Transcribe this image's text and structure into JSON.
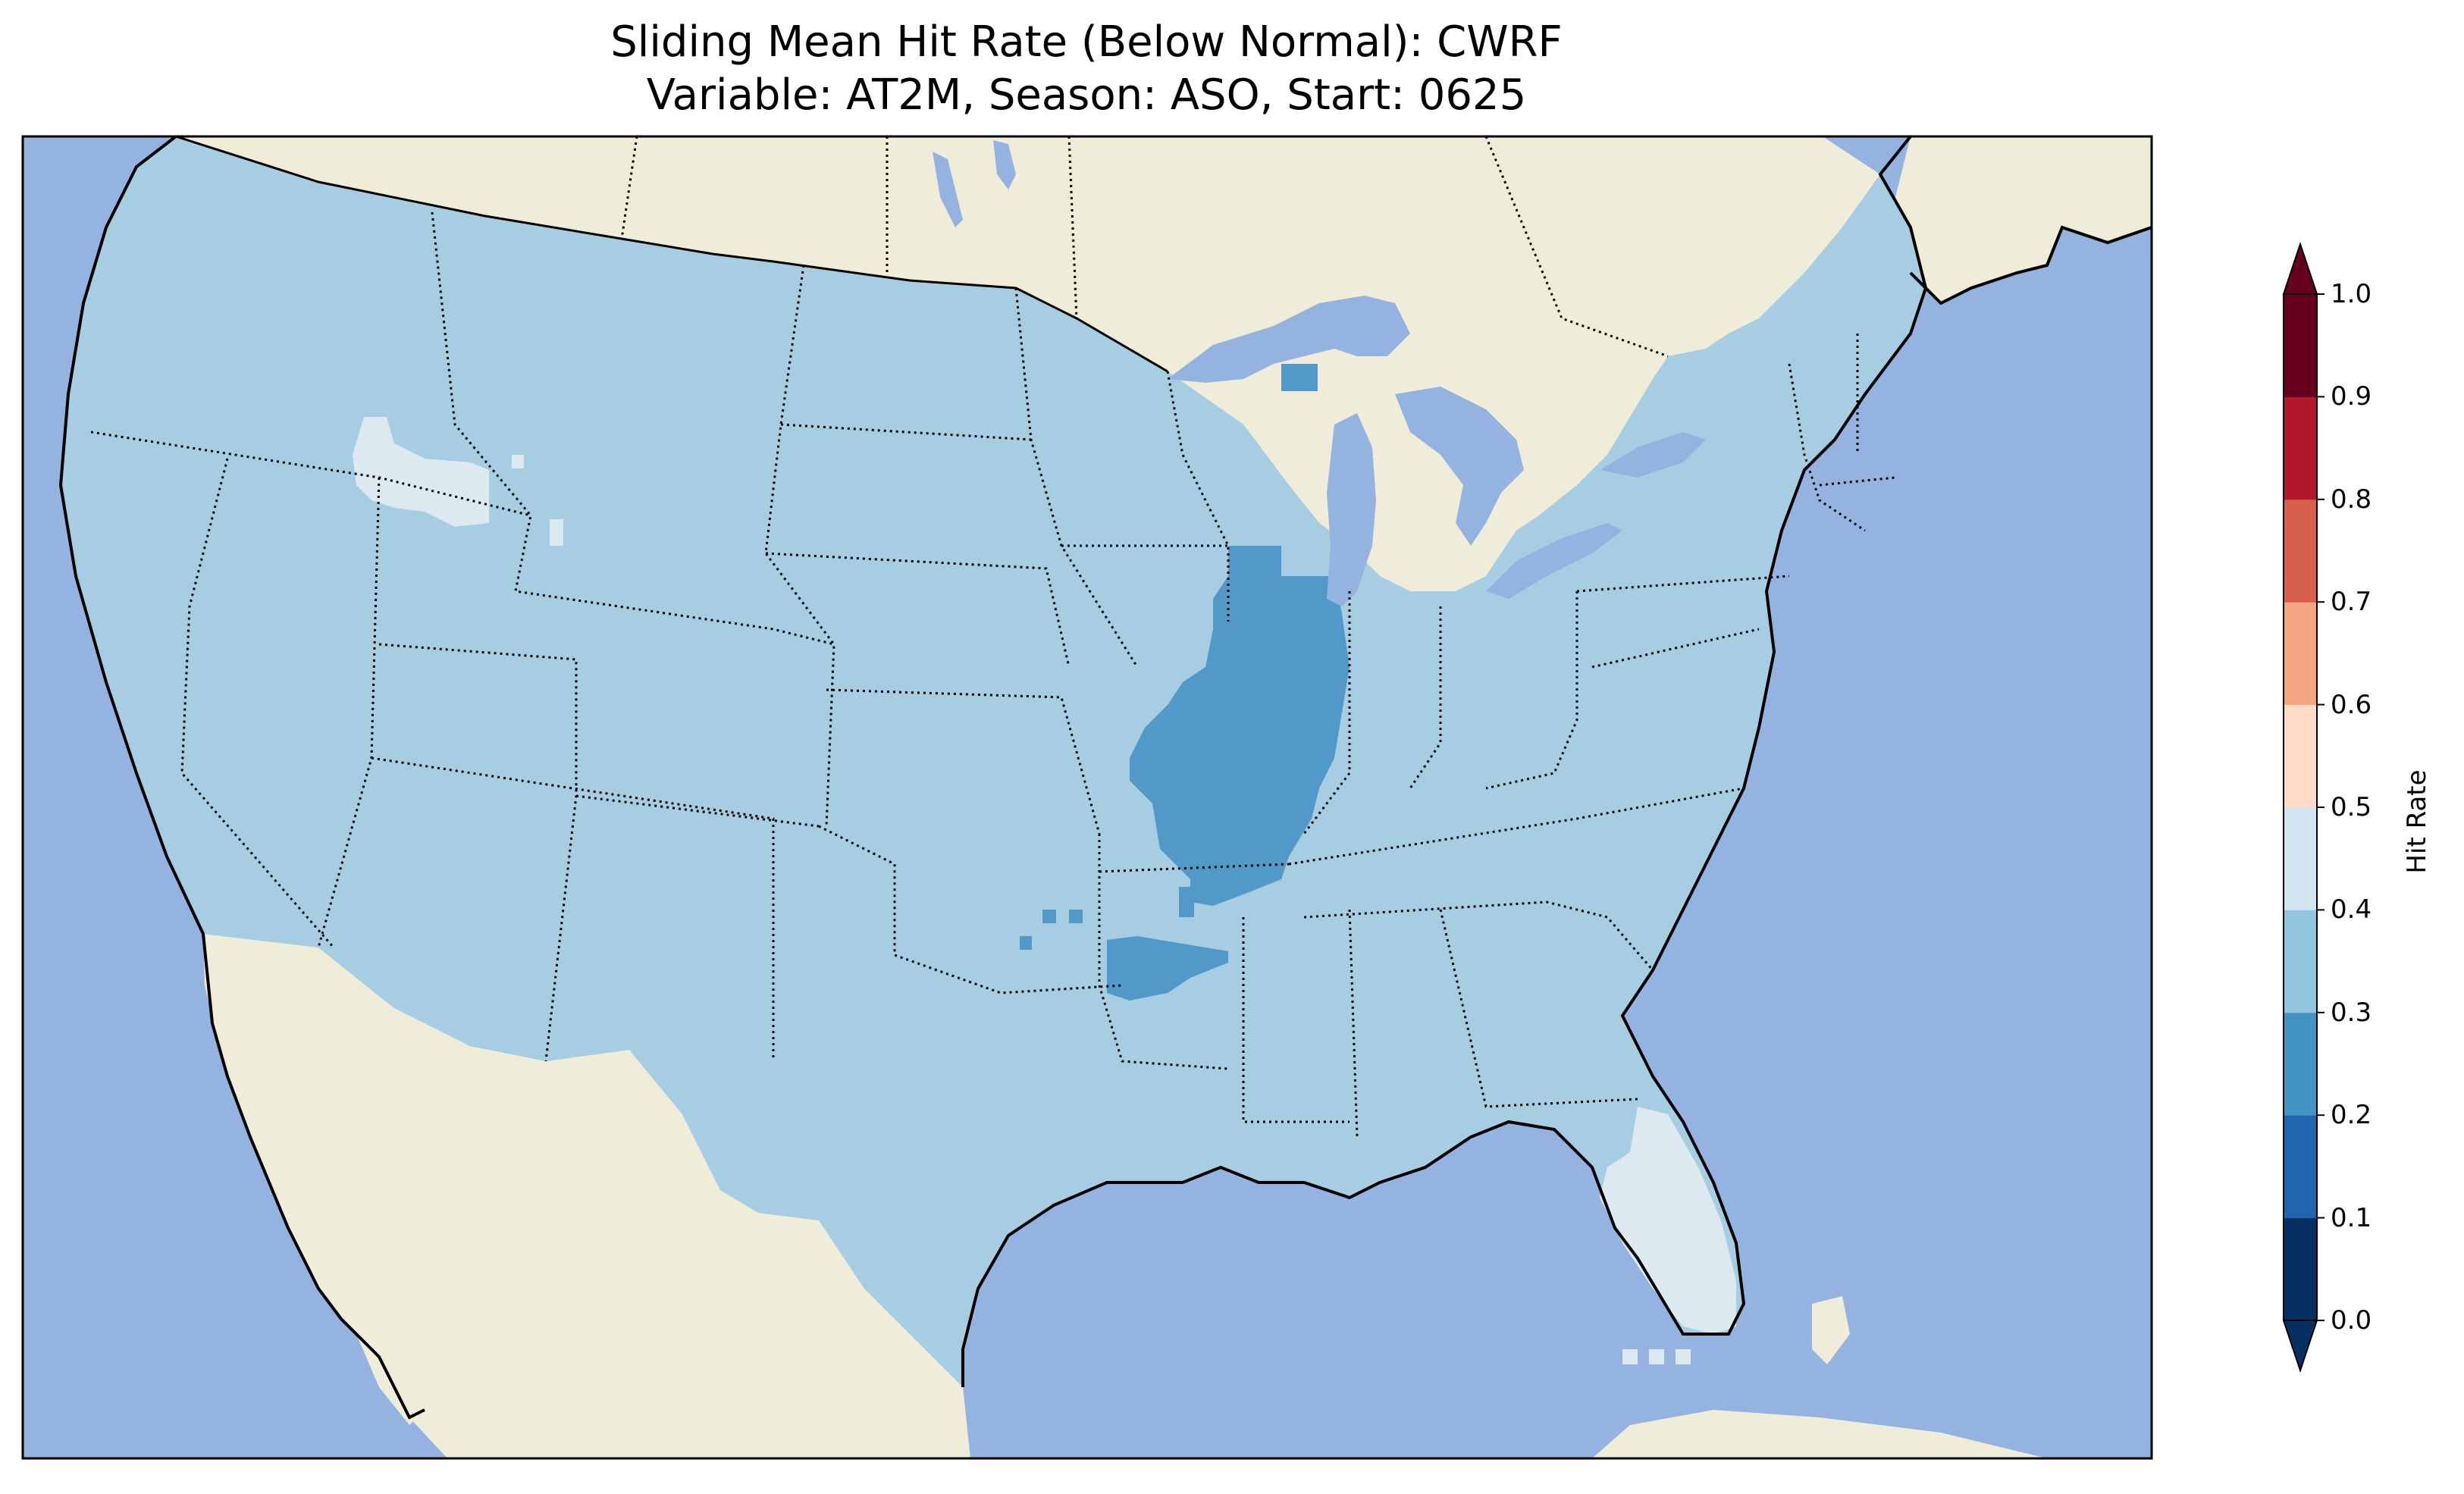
{
  "title": {
    "line1": "Sliding Mean Hit Rate (Below Normal): CWRF",
    "line2": "Variable: AT2M, Season: ASO, Start: 0625"
  },
  "colors": {
    "ocean": "#94b3e0",
    "land_outside": "#efedd9",
    "coastline": "#000000",
    "borders": "#000000",
    "lakes": "#94b3e0"
  },
  "colorbar": {
    "label": "Hit Rate",
    "extend": "both",
    "levels": [
      0.0,
      0.1,
      0.2,
      0.3,
      0.4,
      0.5,
      0.6,
      0.7,
      0.8,
      0.9,
      1.0
    ],
    "tick_labels": [
      "0.0",
      "0.1",
      "0.2",
      "0.3",
      "0.4",
      "0.5",
      "0.6",
      "0.7",
      "0.8",
      "0.9",
      "1.0"
    ],
    "bin_colors": [
      "#053061",
      "#2166ac",
      "#4393c3",
      "#92c5de",
      "#d1e5f0",
      "#fddbc7",
      "#f4a582",
      "#d6604d",
      "#b2182b",
      "#67001f"
    ],
    "under_color": "#053061",
    "over_color": "#67001f"
  },
  "map": {
    "region": "Contiguous United States",
    "dominant_class": "0.3–0.4",
    "dominant_color": "#a7cde2",
    "patches": [
      {
        "name": "Mississippi Valley (Illinois / Missouri)",
        "class": "0.2–0.3",
        "color": "#5299c9"
      },
      {
        "name": "Arkansas / Oklahoma border",
        "class": "0.2–0.3",
        "color": "#5299c9"
      },
      {
        "name": "Upper Peninsula of Michigan",
        "class": "0.2–0.3",
        "color": "#5299c9"
      },
      {
        "name": "Southern Idaho",
        "class": "0.4–0.5",
        "color": "#dde9f1"
      },
      {
        "name": "Florida Peninsula",
        "class": "0.4–0.5",
        "color": "#dde9f1"
      },
      {
        "name": "Florida Keys",
        "class": "0.4–0.5",
        "color": "#dde9f1"
      }
    ]
  }
}
